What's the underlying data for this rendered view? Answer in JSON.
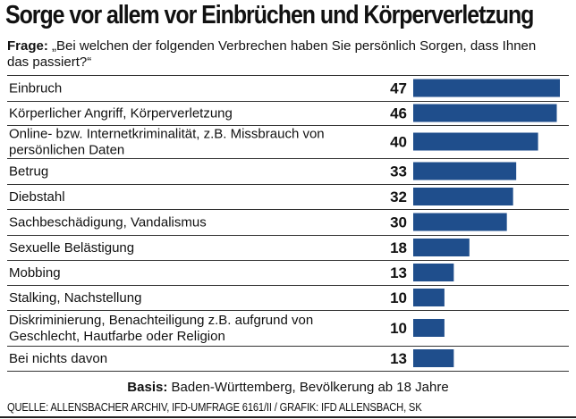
{
  "title": "Sorge vor allem vor Einbrüchen und Körperverletzung",
  "question": {
    "label": "Frage:",
    "text": "„Bei welchen der folgenden Verbrechen haben Sie persönlich Sorgen, dass Ihnen das passiert?“"
  },
  "chart_data": {
    "type": "bar",
    "orientation": "horizontal",
    "title": "Sorge vor allem vor Einbrüchen und Körperverletzung",
    "xlabel": "",
    "ylabel": "",
    "xlim": [
      0,
      47
    ],
    "bar_color": "#1f4e8c",
    "categories": [
      [
        "Einbruch"
      ],
      [
        "Körperlicher Angriff, Körperverletzung"
      ],
      [
        "Online- bzw. Internetkriminalität, z.B. Missbrauch von",
        "persönlichen Daten"
      ],
      [
        "Betrug"
      ],
      [
        "Diebstahl"
      ],
      [
        "Sachbeschädigung, Vandalismus"
      ],
      [
        "Sexuelle Belästigung"
      ],
      [
        "Mobbing"
      ],
      [
        "Stalking, Nachstellung"
      ],
      [
        "Diskriminierung, Benachteiligung z.B. aufgrund von",
        "Geschlecht, Hautfarbe oder Religion"
      ],
      [
        "Bei nichts davon"
      ]
    ],
    "values": [
      47,
      46,
      40,
      33,
      32,
      30,
      18,
      13,
      10,
      10,
      13
    ]
  },
  "basis": {
    "label": "Basis:",
    "text": "Baden-Württemberg, Bevölkerung ab 18 Jahre"
  },
  "source": "QUELLE: ALLENSBACHER ARCHIV, IFD-UMFRAGE 6161/II  / GRAFIK: IFD ALLENSBACH, SK"
}
